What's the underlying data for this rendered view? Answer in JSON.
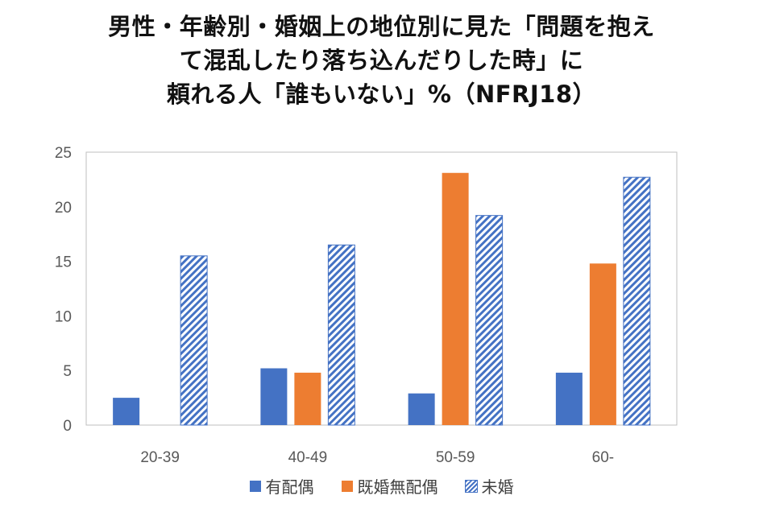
{
  "chart_data": {
    "type": "bar",
    "title_lines": [
      "男性・年齢別・婚姻上の地位別に見た「問題を抱え",
      "て混乱したり落ち込んだりした時」に",
      "頼れる人「誰もいない」%（NFRJ18）"
    ],
    "categories": [
      "20-39",
      "40-49",
      "50-59",
      "60-"
    ],
    "series": [
      {
        "name": "有配偶",
        "values": [
          2.5,
          5.2,
          2.9,
          4.8
        ],
        "color": "#4472C4",
        "pattern": "solid"
      },
      {
        "name": "既婚無配偶",
        "values": [
          null,
          4.8,
          23.1,
          14.8
        ],
        "color": "#ED7D31",
        "pattern": "solid"
      },
      {
        "name": "未婚",
        "values": [
          15.5,
          16.5,
          19.2,
          22.7
        ],
        "color": "#4472C4",
        "pattern": "diagonal-hatch"
      }
    ],
    "ylim": [
      0,
      25
    ],
    "yticks": [
      0,
      5,
      10,
      15,
      20,
      25
    ],
    "xlabel": "",
    "ylabel": "",
    "grid": false,
    "legend_position": "bottom"
  }
}
